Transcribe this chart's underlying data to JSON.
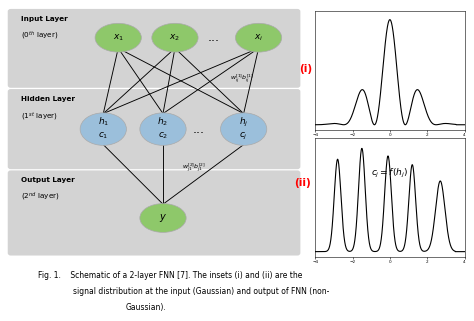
{
  "fig_width": 4.74,
  "fig_height": 3.21,
  "dpi": 100,
  "bg_color": "#ffffff",
  "layer_bg_color": "#cccccc",
  "input_node_color": "#8ec86a",
  "hidden_node_color": "#9bbfdb",
  "output_node_color": "#8ec86a",
  "caption_line1": "Fig. 1.    Schematic of a 2-layer FNN [7]. The insets (i) and (ii) are the",
  "caption_line2": "signal distribution at the input (Gaussian) and output of FNN (non-",
  "caption_line3": "Gaussian).",
  "label_i": "(i)",
  "label_ii": "(ii)",
  "formula": "$c_j = f(h_j)$",
  "input_labels": [
    "$x_1$",
    "$x_2$",
    "$x_i$"
  ],
  "hidden_labels_top": [
    "$h_1$",
    "$h_2$",
    "$h_j$"
  ],
  "hidden_labels_bot": [
    "$c_1$",
    "$c_2$",
    "$c_j$"
  ],
  "output_label": "$y$",
  "input_layer_title1": "Input Layer",
  "input_layer_title2": "(0$^{th}$ layer)",
  "hidden_layer_title1": "Hidden Layer",
  "hidden_layer_title2": "(1$^{st}$ layer)",
  "output_layer_title1": "Output Layer",
  "output_layer_title2": "(2$^{nd}$ layer)",
  "weight_label_1": "$w_{ij}^{[1]}b_{ij}^{[1]}$",
  "weight_label_2": "$w_{j1}^{[2]}b_{j1}^{[2]}$"
}
